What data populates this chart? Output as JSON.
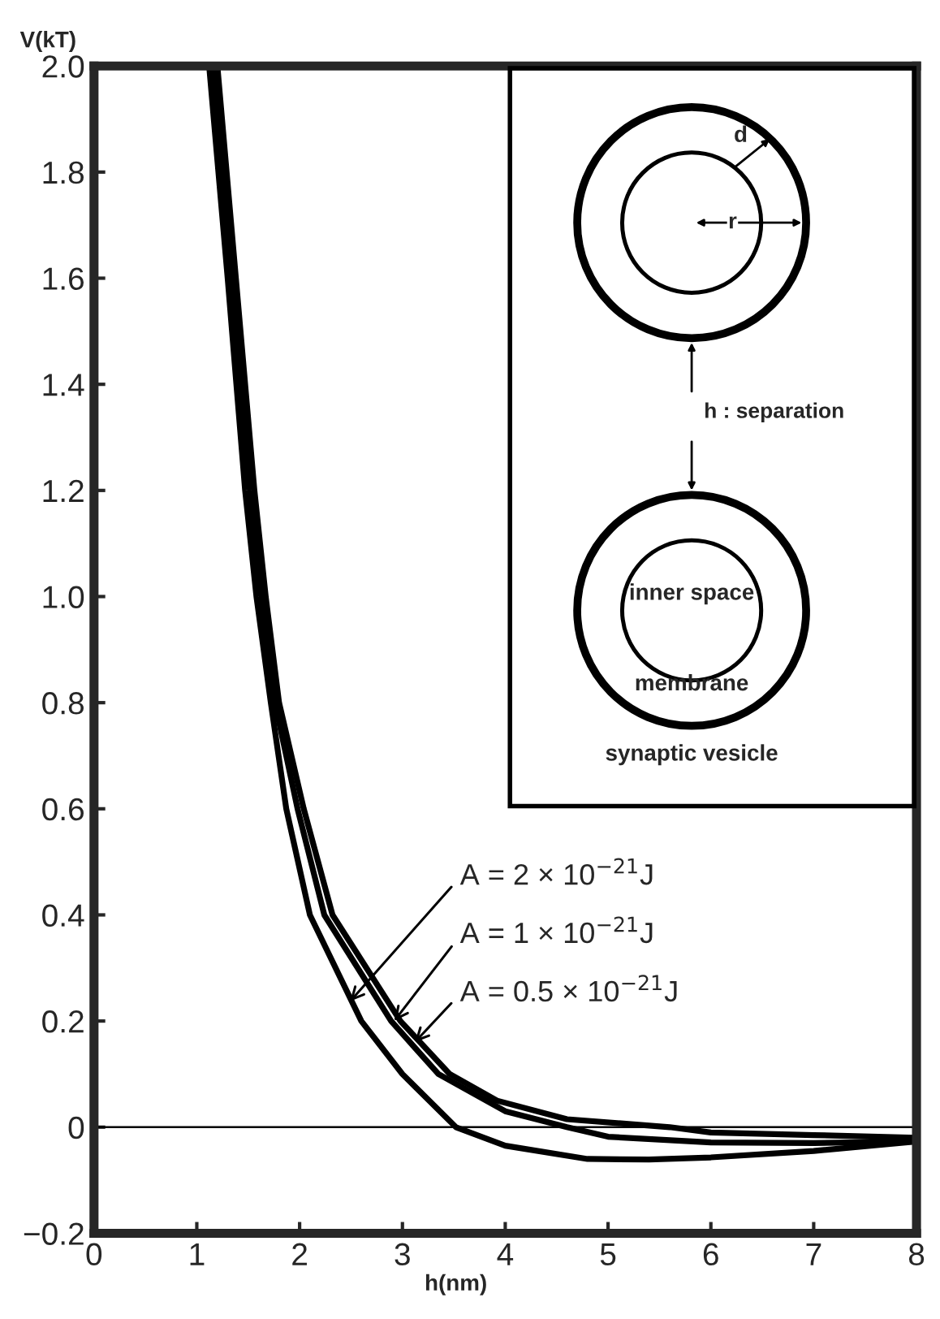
{
  "chart_data": {
    "type": "line",
    "xlabel": "h(nm)",
    "ylabel": "V(kT)",
    "xlim": [
      0,
      8
    ],
    "ylim": [
      -0.2,
      2.0
    ],
    "xticks": [
      0,
      1,
      2,
      3,
      4,
      5,
      6,
      7,
      8
    ],
    "yticks": [
      {
        "value": -0.2,
        "label": "−0.2"
      },
      0,
      0.2,
      0.4,
      0.6,
      0.8,
      {
        "value": 1.0,
        "label": "1.0"
      },
      1.2,
      1.4,
      1.6,
      1.8,
      {
        "value": 2.0,
        "label": "2.0"
      }
    ],
    "grid": false,
    "marker": "none",
    "line_style": "solid",
    "series": [
      {
        "color": "#000000",
        "x": [
          1.12,
          1.3,
          1.47,
          1.58,
          1.72,
          1.87,
          2.1,
          2.6,
          3.0,
          3.52,
          4.0,
          4.8,
          5.4,
          6.0,
          7.0,
          8.0
        ],
        "values": [
          2.0,
          1.6,
          1.2,
          1.0,
          0.8,
          0.6,
          0.4,
          0.2,
          0.1,
          0.0,
          -0.035,
          -0.06,
          -0.061,
          -0.057,
          -0.045,
          -0.027
        ]
      },
      {
        "color": "#000000",
        "x": [
          1.16,
          1.35,
          1.52,
          1.63,
          1.76,
          1.98,
          2.24,
          2.89,
          3.35,
          4.0,
          4.6,
          5.0,
          6.0,
          7.0,
          8.0
        ],
        "values": [
          2.0,
          1.6,
          1.2,
          1.0,
          0.8,
          0.6,
          0.4,
          0.2,
          0.1,
          0.03,
          0.0,
          -0.018,
          -0.029,
          -0.03,
          -0.027
        ]
      },
      {
        "color": "#000000",
        "x": [
          1.2,
          1.38,
          1.56,
          1.67,
          1.8,
          2.04,
          2.32,
          2.98,
          3.46,
          3.92,
          4.6,
          5.6,
          6.0,
          7.0,
          8.0
        ],
        "values": [
          2.0,
          1.6,
          1.2,
          1.0,
          0.8,
          0.6,
          0.4,
          0.2,
          0.1,
          0.05,
          0.015,
          0.0,
          -0.01,
          -0.015,
          -0.02
        ]
      }
    ],
    "ref_lines": [
      {
        "axis": "y",
        "value": 0,
        "color": "#000000",
        "line_style": "solid"
      }
    ],
    "annotations": [
      {
        "text": "A = 2 × 10$^{−21}$J",
        "x": 2.49,
        "y": 0.237
      },
      {
        "text": "A = 1 × 10$^{−21}$J",
        "x": 2.92,
        "y": 0.2
      },
      {
        "text": "A = 0.5 × 10$^{−21}$J",
        "x": 3.12,
        "y": 0.16
      },
      "d",
      "r",
      "h : separation",
      "inner space",
      "membrane",
      "synaptic vesicle"
    ]
  }
}
